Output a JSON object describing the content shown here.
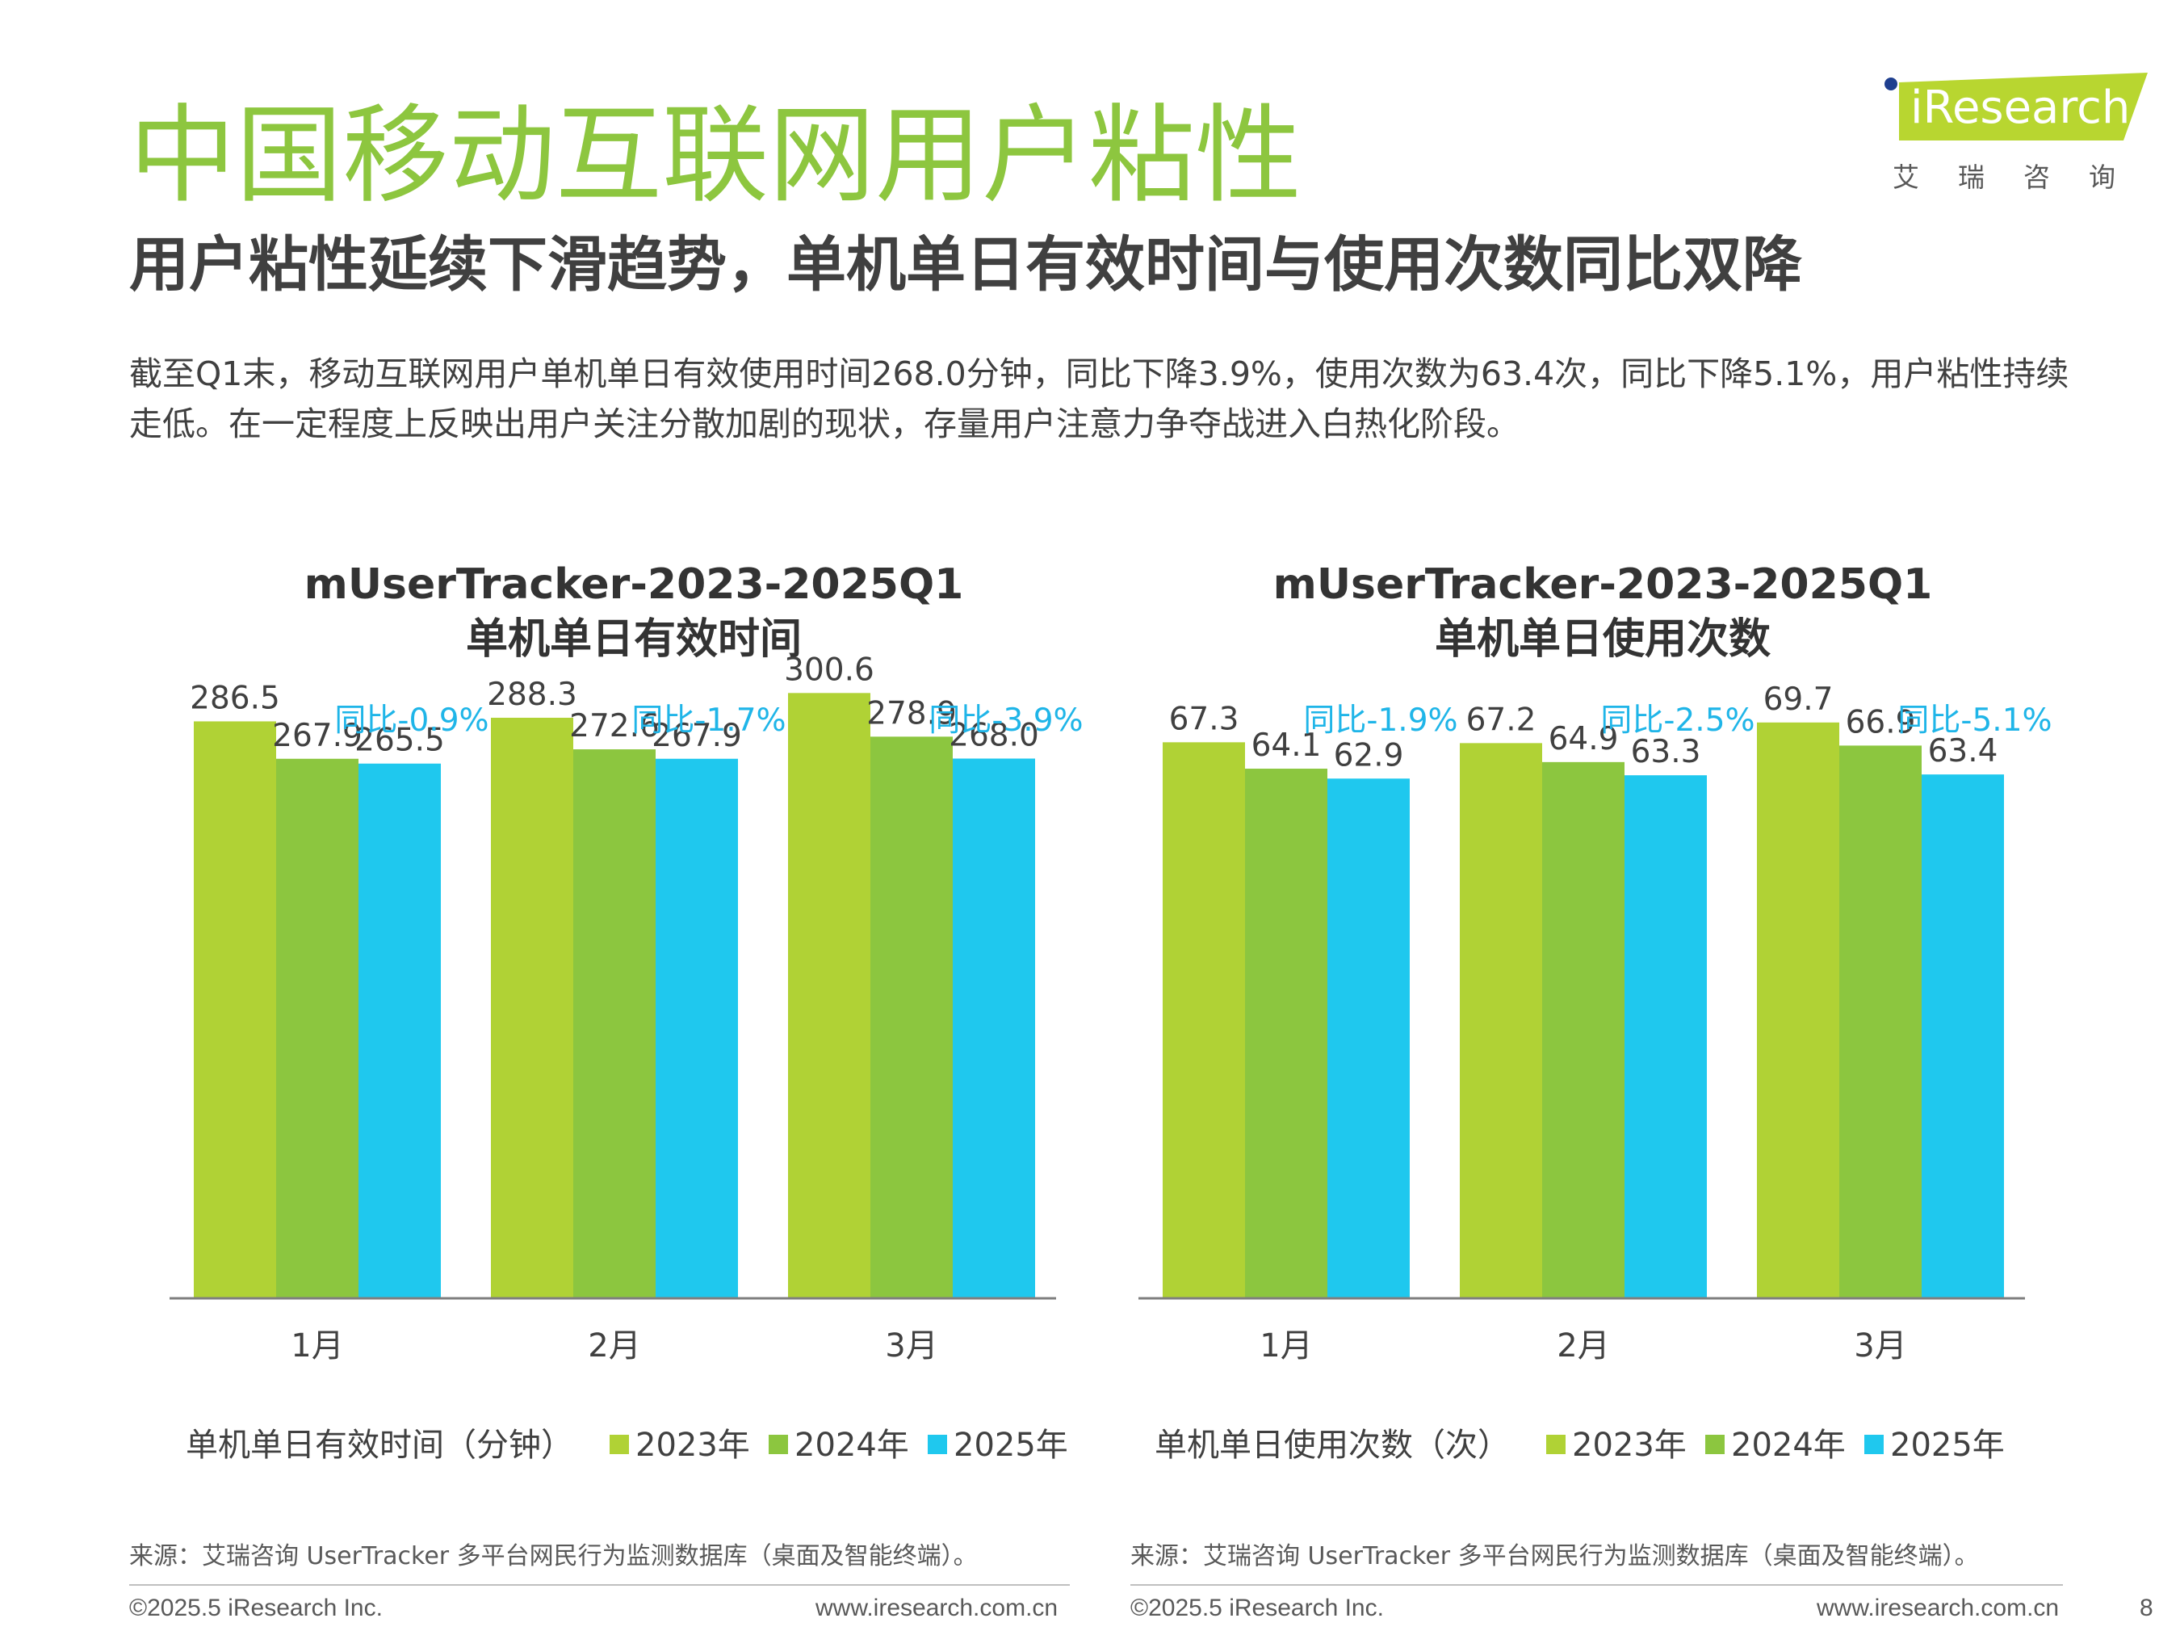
{
  "page": {
    "title": "中国移动互联网用户粘性",
    "subtitle": "用户粘性延续下滑趋势，单机单日有效时间与使用次数同比双降",
    "intro": "截至Q1末，移动互联网用户单机单日有效使用时间268.0分钟，同比下降3.9%，使用次数为63.4次，同比下降5.1%，用户粘性持续走低。在一定程度上反映出用户关注分散加剧的现状，存量用户注意力争夺战进入白热化阶段。",
    "page_number": "8"
  },
  "logo": {
    "brand": "iResearch",
    "brand_cn": "艾瑞咨询"
  },
  "colors": {
    "title_green": "#8dc63f",
    "series_2023": "#b0d235",
    "series_2024": "#8cc63f",
    "series_2025": "#1fc8ee",
    "yoy_text": "#1fb5e8",
    "axis": "#7f7f7f"
  },
  "legend": [
    "2023年",
    "2024年",
    "2025年"
  ],
  "left_legend_title": "单机单日有效时间（分钟）",
  "right_legend_title": "单机单日使用次数（次）",
  "source": "来源：艾瑞咨询 UserTracker 多平台网民行为监测数据库（桌面及智能终端）。",
  "footer": {
    "copyright": "©2025.5 iResearch Inc.",
    "url": "www.iresearch.com.cn"
  },
  "chart_data": [
    {
      "type": "bar",
      "title": "mUserTracker-2023-2025Q1",
      "subtitle": "单机单日有效时间",
      "categories": [
        "1月",
        "2月",
        "3月"
      ],
      "series": [
        {
          "name": "2023年",
          "values": [
            286.5,
            288.3,
            300.6
          ]
        },
        {
          "name": "2024年",
          "values": [
            267.9,
            272.6,
            278.9
          ]
        },
        {
          "name": "2025年",
          "values": [
            265.5,
            267.9,
            268.0
          ]
        }
      ],
      "annotations": [
        "同比-0.9%",
        "同比-1.7%",
        "同比-3.9%"
      ],
      "ylim": [
        0,
        320
      ],
      "legend_title": "单机单日有效时间（分钟）",
      "legend_position": "bottom"
    },
    {
      "type": "bar",
      "title": "mUserTracker-2023-2025Q1",
      "subtitle": "单机单日使用次数",
      "categories": [
        "1月",
        "2月",
        "3月"
      ],
      "series": [
        {
          "name": "2023年",
          "values": [
            67.3,
            67.2,
            69.7
          ]
        },
        {
          "name": "2024年",
          "values": [
            64.1,
            64.9,
            66.9
          ]
        },
        {
          "name": "2025年",
          "values": [
            62.9,
            63.3,
            63.4
          ]
        }
      ],
      "annotations": [
        "同比-1.9%",
        "同比-2.5%",
        "同比-5.1%"
      ],
      "ylim": [
        0,
        78
      ],
      "legend_title": "单机单日使用次数（次）",
      "legend_position": "bottom"
    }
  ]
}
